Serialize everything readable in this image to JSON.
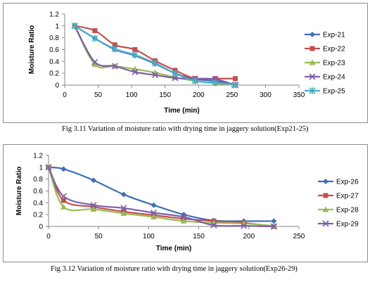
{
  "figures": [
    {
      "caption": "Fig 3.11 Variation of moisture ratio with drying time in jaggery solution(Exp21-25)"
    },
    {
      "caption": "Fig 3.12  Variation of moisture ratio with drying time in jaggery solution(Exp26-29)"
    }
  ],
  "chart_data": [
    {
      "type": "line",
      "xlabel": "Time (min)",
      "ylabel": "Moisture Ratio",
      "xlim": [
        0,
        350
      ],
      "ylim": [
        0,
        1.2
      ],
      "x_ticks": [
        0,
        50,
        100,
        150,
        200,
        250,
        300,
        350
      ],
      "y_ticks": [
        0,
        0.2,
        0.4,
        0.6,
        0.8,
        1,
        1.2
      ],
      "grid": false,
      "legend_position": "right",
      "series": [
        {
          "name": "Exp-21",
          "color": "#3f6fb5",
          "marker": "diamond",
          "points": [
            [
              15,
              1.0
            ],
            [
              45,
              0.79
            ],
            [
              75,
              0.6
            ],
            [
              105,
              0.5
            ],
            [
              135,
              0.36
            ],
            [
              165,
              0.2
            ],
            [
              195,
              0.1
            ],
            [
              225,
              0.07
            ],
            [
              255,
              0.01
            ]
          ]
        },
        {
          "name": "Exp-22",
          "color": "#c0504d",
          "marker": "square",
          "points": [
            [
              15,
              1.0
            ],
            [
              45,
              0.92
            ],
            [
              75,
              0.68
            ],
            [
              105,
              0.6
            ],
            [
              135,
              0.41
            ],
            [
              165,
              0.25
            ],
            [
              195,
              0.11
            ],
            [
              225,
              0.11
            ],
            [
              255,
              0.11
            ]
          ]
        },
        {
          "name": "Exp-23",
          "color": "#9bbb59",
          "marker": "triangle",
          "points": [
            [
              15,
              1.0
            ],
            [
              45,
              0.35
            ],
            [
              75,
              0.32
            ],
            [
              105,
              0.27
            ],
            [
              135,
              0.21
            ],
            [
              165,
              0.13
            ],
            [
              195,
              0.07
            ],
            [
              225,
              0.03
            ],
            [
              255,
              0.0
            ]
          ]
        },
        {
          "name": "Exp-24",
          "color": "#7e5ca8",
          "marker": "x",
          "points": [
            [
              15,
              1.0
            ],
            [
              45,
              0.39
            ],
            [
              75,
              0.32
            ],
            [
              105,
              0.22
            ],
            [
              135,
              0.17
            ],
            [
              165,
              0.12
            ],
            [
              195,
              0.11
            ],
            [
              225,
              0.1
            ],
            [
              255,
              0.0
            ]
          ]
        },
        {
          "name": "Exp-25",
          "color": "#4bacc6",
          "marker": "star",
          "points": [
            [
              15,
              1.0
            ],
            [
              45,
              0.79
            ],
            [
              75,
              0.61
            ],
            [
              105,
              0.51
            ],
            [
              135,
              0.37
            ],
            [
              165,
              0.2
            ],
            [
              195,
              0.07
            ],
            [
              225,
              0.04
            ],
            [
              255,
              0.01
            ]
          ]
        }
      ]
    },
    {
      "type": "line",
      "xlabel": "Time (min)",
      "ylabel": "Moisture Ratio",
      "xlim": [
        0,
        250
      ],
      "ylim": [
        0,
        1.2
      ],
      "x_ticks": [
        0,
        50,
        100,
        150,
        200,
        250
      ],
      "y_ticks": [
        0,
        0.2,
        0.4,
        0.6,
        0.8,
        1,
        1.2
      ],
      "grid": false,
      "legend_position": "right",
      "series": [
        {
          "name": "Exp-26",
          "color": "#3f6fb5",
          "marker": "diamond",
          "points": [
            [
              0,
              1.0
            ],
            [
              15,
              0.97
            ],
            [
              45,
              0.78
            ],
            [
              75,
              0.54
            ],
            [
              105,
              0.36
            ],
            [
              135,
              0.2
            ],
            [
              165,
              0.1
            ],
            [
              195,
              0.09
            ],
            [
              225,
              0.09
            ]
          ]
        },
        {
          "name": "Exp-27",
          "color": "#c0504d",
          "marker": "square",
          "points": [
            [
              0,
              1.0
            ],
            [
              15,
              0.44
            ],
            [
              45,
              0.33
            ],
            [
              75,
              0.25
            ],
            [
              105,
              0.19
            ],
            [
              135,
              0.13
            ],
            [
              165,
              0.09
            ],
            [
              195,
              0.06
            ],
            [
              225,
              0.0
            ]
          ]
        },
        {
          "name": "Exp-28",
          "color": "#9bbb59",
          "marker": "triangle",
          "points": [
            [
              0,
              1.0
            ],
            [
              15,
              0.33
            ],
            [
              45,
              0.29
            ],
            [
              75,
              0.22
            ],
            [
              105,
              0.16
            ],
            [
              135,
              0.09
            ],
            [
              165,
              0.06
            ],
            [
              195,
              0.05
            ],
            [
              225,
              0.01
            ]
          ]
        },
        {
          "name": "Exp-29",
          "color": "#7e5ca8",
          "marker": "x",
          "points": [
            [
              0,
              1.0
            ],
            [
              15,
              0.51
            ],
            [
              45,
              0.36
            ],
            [
              75,
              0.31
            ],
            [
              105,
              0.23
            ],
            [
              135,
              0.16
            ],
            [
              165,
              0.02
            ],
            [
              195,
              0.01
            ],
            [
              225,
              0.0
            ]
          ]
        }
      ]
    }
  ]
}
